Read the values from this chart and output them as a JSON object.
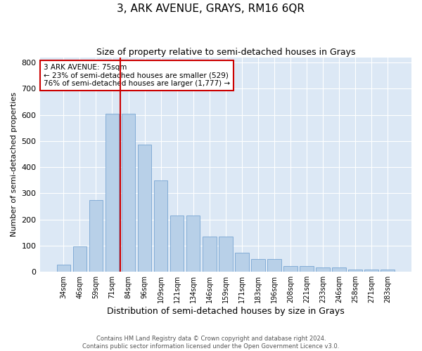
{
  "title": "3, ARK AVENUE, GRAYS, RM16 6QR",
  "subtitle": "Size of property relative to semi-detached houses in Grays",
  "xlabel": "Distribution of semi-detached houses by size in Grays",
  "ylabel": "Number of semi-detached properties",
  "categories": [
    "34sqm",
    "46sqm",
    "59sqm",
    "71sqm",
    "84sqm",
    "96sqm",
    "109sqm",
    "121sqm",
    "134sqm",
    "146sqm",
    "159sqm",
    "171sqm",
    "183sqm",
    "196sqm",
    "208sqm",
    "221sqm",
    "233sqm",
    "246sqm",
    "258sqm",
    "271sqm",
    "283sqm"
  ],
  "values": [
    28,
    97,
    275,
    605,
    605,
    485,
    350,
    215,
    215,
    135,
    135,
    72,
    48,
    48,
    22,
    22,
    18,
    18,
    8,
    8,
    8
  ],
  "bar_color": "#b8d0e8",
  "bar_edge_color": "#6699cc",
  "vline_color": "#cc0000",
  "annotation_text": "3 ARK AVENUE: 75sqm\n← 23% of semi-detached houses are smaller (529)\n76% of semi-detached houses are larger (1,777) →",
  "annotation_box_color": "#ffffff",
  "annotation_box_edge": "#cc0000",
  "footer1": "Contains HM Land Registry data © Crown copyright and database right 2024.",
  "footer2": "Contains public sector information licensed under the Open Government Licence v3.0.",
  "ylim": [
    0,
    820
  ],
  "yticks": [
    0,
    100,
    200,
    300,
    400,
    500,
    600,
    700,
    800
  ],
  "background_color": "#dce8f5",
  "title_fontsize": 11,
  "subtitle_fontsize": 9,
  "xlabel_fontsize": 9,
  "ylabel_fontsize": 8,
  "vline_x_index": 3.5
}
